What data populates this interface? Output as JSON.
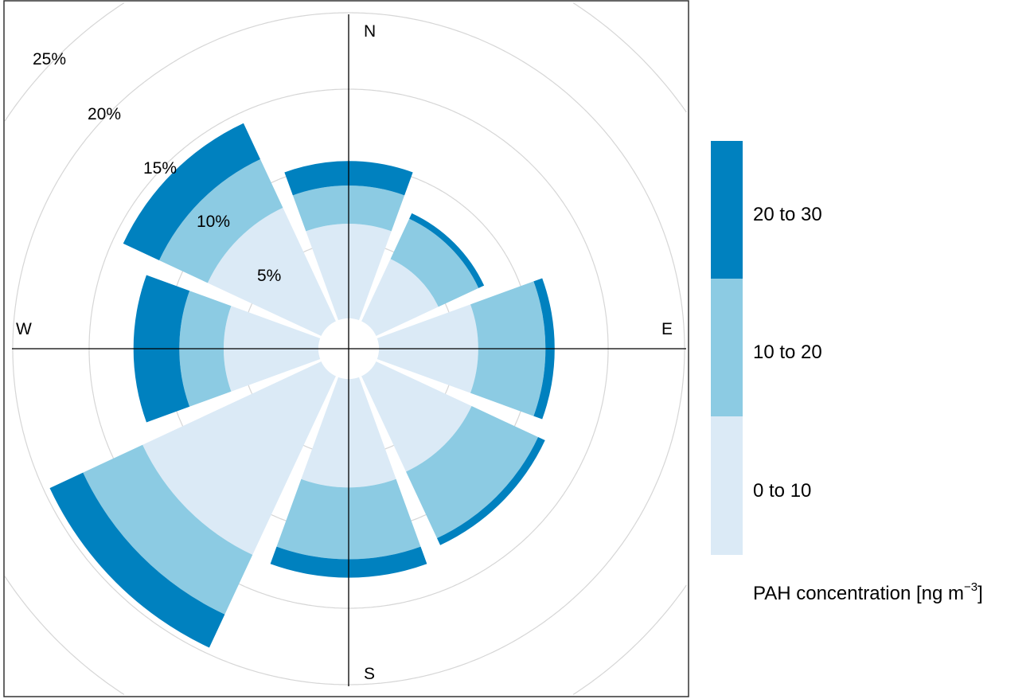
{
  "chart_data": {
    "type": "wind-rose",
    "directions": [
      "N",
      "NE",
      "E",
      "SE",
      "S",
      "SW",
      "W",
      "NW"
    ],
    "compass_labels": {
      "N": "N",
      "E": "E",
      "S": "S",
      "W": "W"
    },
    "radial_ticks": [
      5,
      10,
      15,
      20,
      25
    ],
    "radial_tick_labels": [
      "5%",
      "10%",
      "15%",
      "20%",
      "25%"
    ],
    "radial_unit": "%",
    "series": [
      {
        "name": "0 to 10",
        "color": "#dbeaf6",
        "values": [
          6.2,
          4.5,
          6.5,
          6.9,
          7.1,
          12.9,
          6.2,
          8.2
        ]
      },
      {
        "name": "10 to 20",
        "color": "#8ccbe3",
        "values": [
          2.5,
          2.9,
          4.4,
          4.8,
          4.7,
          4.3,
          2.9,
          3.5
        ]
      },
      {
        "name": "20 to 30",
        "color": "#0081bf",
        "values": [
          1.6,
          0.4,
          0.6,
          0.5,
          1.2,
          2.4,
          3.0,
          2.6
        ]
      }
    ],
    "legend": {
      "title": "PAH concentration [ng m",
      "title_sup": "−3",
      "title_end": "]",
      "placement": "right"
    },
    "grid": true
  }
}
